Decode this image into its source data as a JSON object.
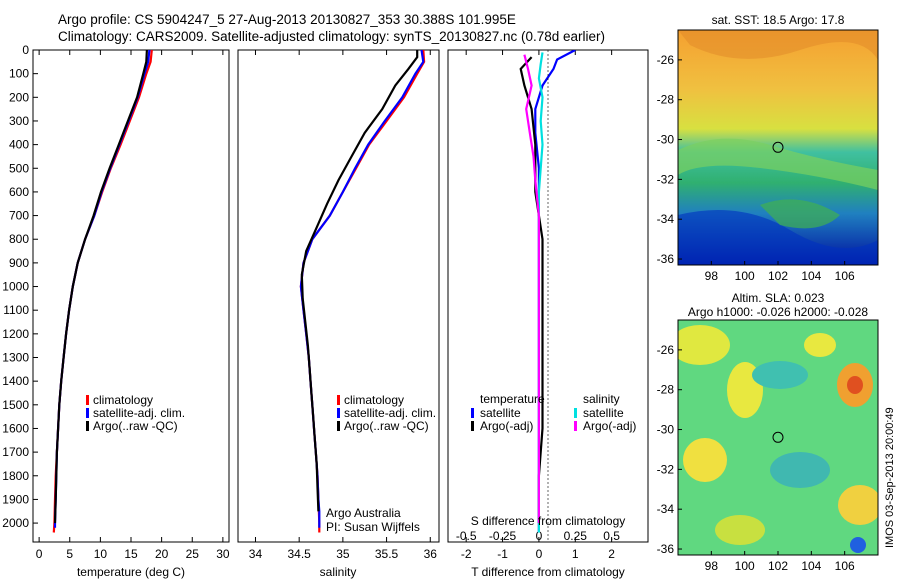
{
  "header": {
    "line1": "Argo profile: CS 5904247_5 27-Aug-2013 20130827_353 30.388S 101.995E",
    "line2": "Climatology: CARS2009. Satellite-adjusted climatology: synTS_20130827.nc (0.78d earlier)"
  },
  "chart_data": [
    {
      "type": "line",
      "id": "temperature",
      "xlabel": "temperature (deg C)",
      "ylabel": "",
      "xlim": [
        -1,
        31
      ],
      "ylim": [
        2080,
        0
      ],
      "xticks": [
        0,
        5,
        10,
        15,
        20,
        25,
        30
      ],
      "yticks": [
        0,
        100,
        200,
        300,
        400,
        500,
        600,
        700,
        800,
        900,
        1000,
        1100,
        1200,
        1300,
        1400,
        1500,
        1600,
        1700,
        1800,
        1900,
        2000
      ],
      "legend": [
        "climatology",
        "satellite-adj. clim.",
        "Argo(..raw -QC)"
      ],
      "series": [
        {
          "name": "climatology",
          "color": "#ff0000",
          "points": [
            [
              18.4,
              0
            ],
            [
              18.2,
              50
            ],
            [
              17.5,
              100
            ],
            [
              16.3,
              200
            ],
            [
              14.8,
              300
            ],
            [
              13.3,
              400
            ],
            [
              11.7,
              500
            ],
            [
              10.3,
              600
            ],
            [
              9.0,
              700
            ],
            [
              7.5,
              800
            ],
            [
              6.3,
              900
            ],
            [
              5.5,
              1000
            ],
            [
              4.9,
              1100
            ],
            [
              4.4,
              1200
            ],
            [
              4.0,
              1300
            ],
            [
              3.6,
              1400
            ],
            [
              3.3,
              1500
            ],
            [
              3.1,
              1600
            ],
            [
              2.9,
              1700
            ],
            [
              2.7,
              1800
            ],
            [
              2.6,
              1900
            ],
            [
              2.5,
              2000
            ],
            [
              2.4,
              2040
            ]
          ]
        },
        {
          "name": "satellite-adj. clim.",
          "color": "#0000ff",
          "points": [
            [
              18.0,
              0
            ],
            [
              17.8,
              50
            ],
            [
              17.2,
              100
            ],
            [
              16.1,
              200
            ],
            [
              14.6,
              300
            ],
            [
              13.1,
              400
            ],
            [
              11.6,
              500
            ],
            [
              10.2,
              600
            ],
            [
              9.0,
              700
            ],
            [
              7.5,
              800
            ],
            [
              6.3,
              900
            ],
            [
              5.5,
              1000
            ],
            [
              4.9,
              1100
            ],
            [
              4.4,
              1200
            ],
            [
              4.0,
              1300
            ],
            [
              3.6,
              1400
            ],
            [
              3.3,
              1500
            ],
            [
              3.1,
              1600
            ],
            [
              2.9,
              1700
            ],
            [
              2.8,
              1800
            ],
            [
              2.7,
              1900
            ],
            [
              2.6,
              2000
            ],
            [
              2.6,
              2020
            ]
          ]
        },
        {
          "name": "Argo(..raw -QC)",
          "color": "#000000",
          "points": [
            [
              17.6,
              0
            ],
            [
              17.5,
              50
            ],
            [
              17.0,
              100
            ],
            [
              16.0,
              200
            ],
            [
              14.5,
              300
            ],
            [
              13.0,
              400
            ],
            [
              11.5,
              500
            ],
            [
              10.1,
              600
            ],
            [
              8.9,
              700
            ],
            [
              7.5,
              800
            ],
            [
              6.3,
              900
            ],
            [
              5.5,
              1000
            ],
            [
              4.9,
              1100
            ],
            [
              4.4,
              1200
            ],
            [
              4.0,
              1300
            ],
            [
              3.6,
              1400
            ],
            [
              3.3,
              1500
            ],
            [
              3.1,
              1600
            ],
            [
              2.9,
              1700
            ],
            [
              2.8,
              1800
            ],
            [
              2.7,
              1900
            ],
            [
              2.6,
              2000
            ]
          ]
        }
      ]
    },
    {
      "type": "line",
      "id": "salinity",
      "xlabel": "salinity",
      "xlim": [
        33.8,
        36.1
      ],
      "ylim": [
        2080,
        0
      ],
      "xticks": [
        34,
        34.5,
        35,
        35.5,
        36
      ],
      "legend": [
        "climatology",
        "satellite-adj. clim.",
        "Argo(..raw -QC)"
      ],
      "annotation": [
        "Argo Australia",
        "PI: Susan Wijffels"
      ],
      "series": [
        {
          "name": "climatology",
          "color": "#ff0000",
          "points": [
            [
              35.92,
              0
            ],
            [
              35.93,
              50
            ],
            [
              35.85,
              100
            ],
            [
              35.7,
              200
            ],
            [
              35.5,
              300
            ],
            [
              35.3,
              400
            ],
            [
              35.15,
              500
            ],
            [
              35.0,
              600
            ],
            [
              34.85,
              700
            ],
            [
              34.65,
              800
            ],
            [
              34.55,
              900
            ],
            [
              34.52,
              1000
            ],
            [
              34.55,
              1100
            ],
            [
              34.58,
              1200
            ],
            [
              34.61,
              1300
            ],
            [
              34.63,
              1400
            ],
            [
              34.65,
              1500
            ],
            [
              34.67,
              1600
            ],
            [
              34.69,
              1700
            ],
            [
              34.71,
              1800
            ],
            [
              34.72,
              1900
            ],
            [
              34.73,
              2000
            ],
            [
              34.73,
              2040
            ]
          ]
        },
        {
          "name": "satellite-adj. clim.",
          "color": "#0000ff",
          "points": [
            [
              35.9,
              0
            ],
            [
              35.92,
              50
            ],
            [
              35.83,
              100
            ],
            [
              35.68,
              200
            ],
            [
              35.48,
              300
            ],
            [
              35.29,
              400
            ],
            [
              35.14,
              500
            ],
            [
              35.0,
              600
            ],
            [
              34.85,
              700
            ],
            [
              34.65,
              800
            ],
            [
              34.55,
              900
            ],
            [
              34.52,
              1000
            ],
            [
              34.55,
              1100
            ],
            [
              34.58,
              1200
            ],
            [
              34.61,
              1300
            ],
            [
              34.63,
              1400
            ],
            [
              34.65,
              1500
            ],
            [
              34.67,
              1600
            ],
            [
              34.69,
              1700
            ],
            [
              34.71,
              1800
            ],
            [
              34.72,
              1900
            ],
            [
              34.73,
              1950
            ],
            [
              34.73,
              2020
            ]
          ]
        },
        {
          "name": "Argo(..raw -QC)",
          "color": "#000000",
          "points": [
            [
              35.85,
              0
            ],
            [
              35.85,
              30
            ],
            [
              35.75,
              80
            ],
            [
              35.6,
              150
            ],
            [
              35.45,
              250
            ],
            [
              35.25,
              350
            ],
            [
              35.1,
              450
            ],
            [
              34.95,
              550
            ],
            [
              34.82,
              650
            ],
            [
              34.7,
              750
            ],
            [
              34.58,
              850
            ],
            [
              34.53,
              950
            ],
            [
              34.54,
              1050
            ],
            [
              34.57,
              1150
            ],
            [
              34.6,
              1250
            ],
            [
              34.62,
              1350
            ],
            [
              34.64,
              1450
            ],
            [
              34.66,
              1550
            ],
            [
              34.68,
              1650
            ],
            [
              34.7,
              1750
            ],
            [
              34.71,
              1850
            ],
            [
              34.72,
              1950
            ]
          ]
        }
      ]
    },
    {
      "type": "line",
      "id": "differences",
      "xlabel": "T difference from climatology",
      "top_xlabel": "S difference from climatology",
      "xlim": [
        -2.5,
        3
      ],
      "ylim": [
        2080,
        0
      ],
      "xticks": [
        -2,
        -1,
        0,
        1,
        2
      ],
      "s_ticks": [
        "-0.5",
        "-0.25",
        "0",
        "0.25",
        "0.5"
      ],
      "legend": {
        "temperature": "temperature",
        "salinity": "salinity",
        "entries": [
          "satellite",
          "Argo(-adj)",
          "satellite",
          "Argo(-adj)"
        ]
      },
      "series": [
        {
          "name": "temperature satellite",
          "color": "#0000ff",
          "points": [
            [
              1.0,
              0
            ],
            [
              0.5,
              40
            ],
            [
              0.4,
              80
            ],
            [
              0.1,
              150
            ],
            [
              -0.1,
              250
            ],
            [
              -0.1,
              350
            ],
            [
              0.0,
              500
            ],
            [
              0.0,
              700
            ],
            [
              0.0,
              900
            ],
            [
              0.0,
              1200
            ],
            [
              0.0,
              1500
            ],
            [
              0.0,
              1800
            ],
            [
              0.0,
              2040
            ]
          ]
        },
        {
          "name": "temperature Argo(-adj)",
          "color": "#000000",
          "points": [
            [
              -0.2,
              30
            ],
            [
              -0.5,
              80
            ],
            [
              -0.4,
              150
            ],
            [
              -0.2,
              250
            ],
            [
              -0.1,
              400
            ],
            [
              -0.1,
              600
            ],
            [
              0.1,
              800
            ],
            [
              0.1,
              1000
            ],
            [
              0.1,
              1200
            ],
            [
              0.1,
              1400
            ],
            [
              0.1,
              1600
            ],
            [
              0.0,
              1800
            ],
            [
              0.0,
              2000
            ]
          ]
        },
        {
          "name": "salinity satellite",
          "color": "#00e0e0",
          "points": [
            [
              0.1,
              10
            ],
            [
              0.05,
              60
            ],
            [
              0.0,
              120
            ],
            [
              0.1,
              200
            ],
            [
              0.05,
              300
            ],
            [
              0.1,
              400
            ],
            [
              0.0,
              600
            ],
            [
              0.0,
              800
            ],
            [
              0.0,
              1000
            ],
            [
              0.0,
              1300
            ],
            [
              0.0,
              1600
            ],
            [
              0.0,
              1900
            ],
            [
              0.0,
              2040
            ]
          ]
        },
        {
          "name": "salinity Argo(-adj)",
          "color": "#ff00ff",
          "points": [
            [
              -0.4,
              20
            ],
            [
              -0.3,
              80
            ],
            [
              -0.2,
              150
            ],
            [
              -0.35,
              250
            ],
            [
              -0.25,
              350
            ],
            [
              -0.15,
              450
            ],
            [
              -0.1,
              550
            ],
            [
              0.0,
              700
            ],
            [
              0.0,
              900
            ],
            [
              0.0,
              1100
            ],
            [
              0.0,
              1400
            ],
            [
              0.0,
              1700
            ],
            [
              0.0,
              2000
            ]
          ]
        }
      ]
    },
    {
      "type": "heatmap",
      "id": "sst-map",
      "title": "sat. SST: 18.5 Argo: 17.8",
      "xticks": [
        98,
        100,
        102,
        104,
        106
      ],
      "yticks": [
        -26,
        -28,
        -30,
        -32,
        -34,
        -36
      ],
      "xlim": [
        96,
        108
      ],
      "ylim": [
        -36.3,
        -24.5
      ],
      "marker": [
        102.0,
        -30.39
      ]
    },
    {
      "type": "heatmap",
      "id": "sla-map",
      "title": "Altim. SLA: 0.023",
      "subtitle": "Argo h1000: -0.026 h2000: -0.028",
      "xticks": [
        98,
        100,
        102,
        104,
        106
      ],
      "yticks": [
        -26,
        -28,
        -30,
        -32,
        -34,
        -36
      ],
      "xlim": [
        96,
        108
      ],
      "ylim": [
        -36.3,
        -24.5
      ],
      "marker": [
        102.0,
        -30.39
      ]
    }
  ],
  "side_note": "IMOS 03-Sep-2013 20:00:49",
  "colors": {
    "climatology": "#ff0000",
    "satellite": "#0000ff",
    "argo": "#000000",
    "sal_satellite": "#00e0e0",
    "sal_argo": "#ff00ff"
  }
}
